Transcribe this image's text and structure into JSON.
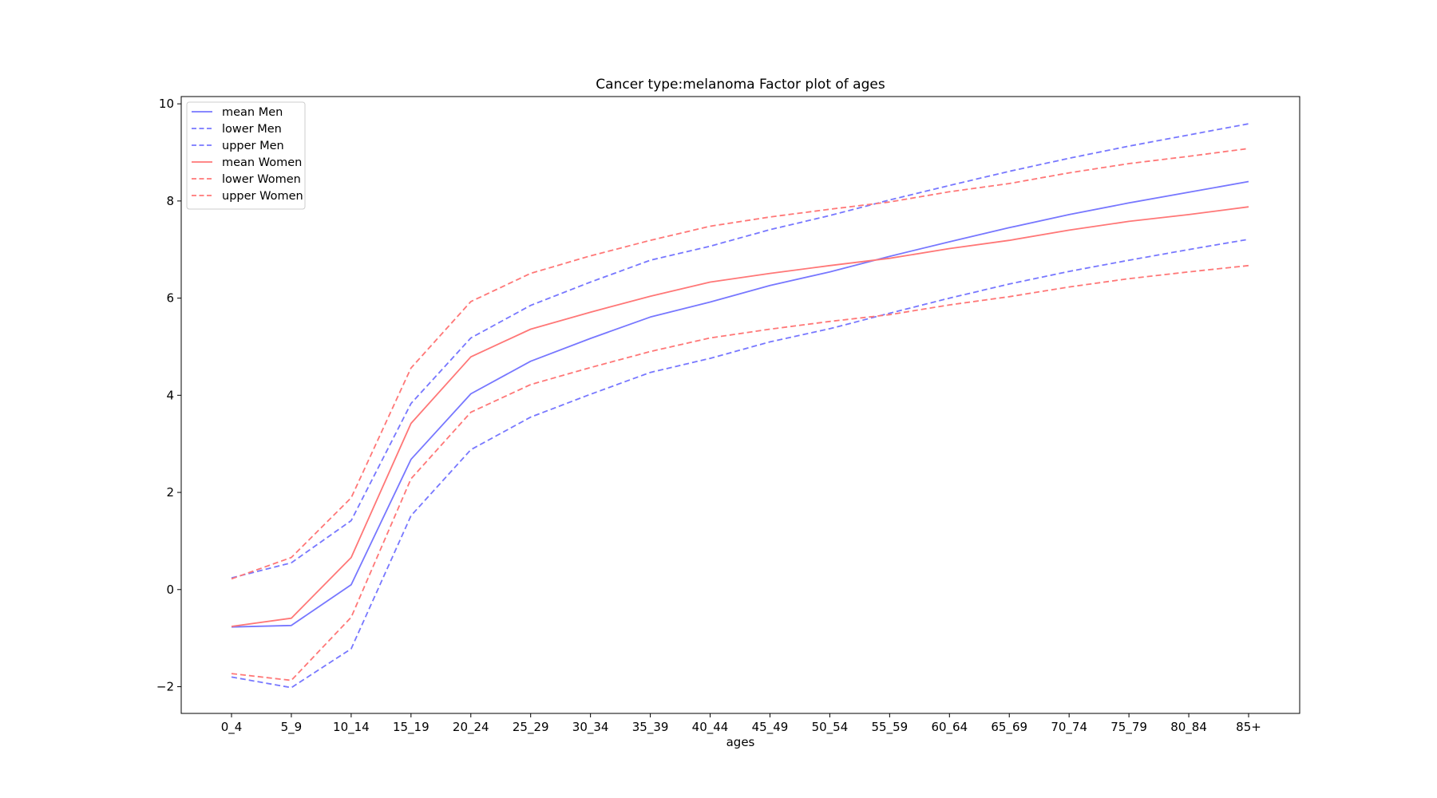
{
  "chart_data": {
    "type": "line",
    "title": "Cancer type:melanoma Factor plot of ages",
    "xlabel": "ages",
    "ylabel": "",
    "categories": [
      "0_4",
      "5_9",
      "10_14",
      "15_19",
      "20_24",
      "25_29",
      "30_34",
      "35_39",
      "40_44",
      "45_49",
      "50_54",
      "55_59",
      "60_64",
      "65_69",
      "70_74",
      "75_79",
      "80_84",
      "85+"
    ],
    "ylim": [
      -2.55,
      10.15
    ],
    "yticks": [
      -2,
      0,
      2,
      4,
      6,
      8,
      10
    ],
    "ytick_labels": [
      "−2",
      "0",
      "2",
      "4",
      "6",
      "8",
      "10"
    ],
    "grid": false,
    "legend_position": "top-left",
    "series": [
      {
        "name": "mean Men",
        "color": "#7777ff",
        "dash": "solid",
        "values": [
          -0.77,
          -0.74,
          0.1,
          2.68,
          4.03,
          4.7,
          5.17,
          5.61,
          5.92,
          6.26,
          6.54,
          6.86,
          7.16,
          7.45,
          7.72,
          7.96,
          8.18,
          8.4
        ]
      },
      {
        "name": "lower Men",
        "color": "#7777ff",
        "dash": "dashed",
        "values": [
          -1.8,
          -2.02,
          -1.22,
          1.52,
          2.88,
          3.55,
          4.02,
          4.47,
          4.76,
          5.1,
          5.37,
          5.69,
          6.0,
          6.29,
          6.55,
          6.78,
          7.0,
          7.21
        ]
      },
      {
        "name": "upper Men",
        "color": "#7777ff",
        "dash": "dashed",
        "values": [
          0.24,
          0.55,
          1.42,
          3.83,
          5.18,
          5.85,
          6.33,
          6.78,
          7.07,
          7.41,
          7.7,
          8.02,
          8.32,
          8.61,
          8.88,
          9.13,
          9.36,
          9.59
        ]
      },
      {
        "name": "mean Women",
        "color": "#ff7777",
        "dash": "solid",
        "values": [
          -0.76,
          -0.59,
          0.66,
          3.42,
          4.79,
          5.36,
          5.71,
          6.04,
          6.33,
          6.51,
          6.67,
          6.82,
          7.02,
          7.19,
          7.4,
          7.58,
          7.72,
          7.88
        ]
      },
      {
        "name": "lower Women",
        "color": "#ff7777",
        "dash": "dashed",
        "values": [
          -1.73,
          -1.87,
          -0.57,
          2.28,
          3.65,
          4.22,
          4.57,
          4.9,
          5.18,
          5.36,
          5.52,
          5.66,
          5.86,
          6.03,
          6.23,
          6.4,
          6.54,
          6.67
        ]
      },
      {
        "name": "upper Women",
        "color": "#ff7777",
        "dash": "dashed",
        "values": [
          0.22,
          0.66,
          1.89,
          4.56,
          5.93,
          6.51,
          6.87,
          7.19,
          7.48,
          7.67,
          7.83,
          7.98,
          8.19,
          8.36,
          8.58,
          8.77,
          8.92,
          9.08
        ]
      }
    ]
  }
}
